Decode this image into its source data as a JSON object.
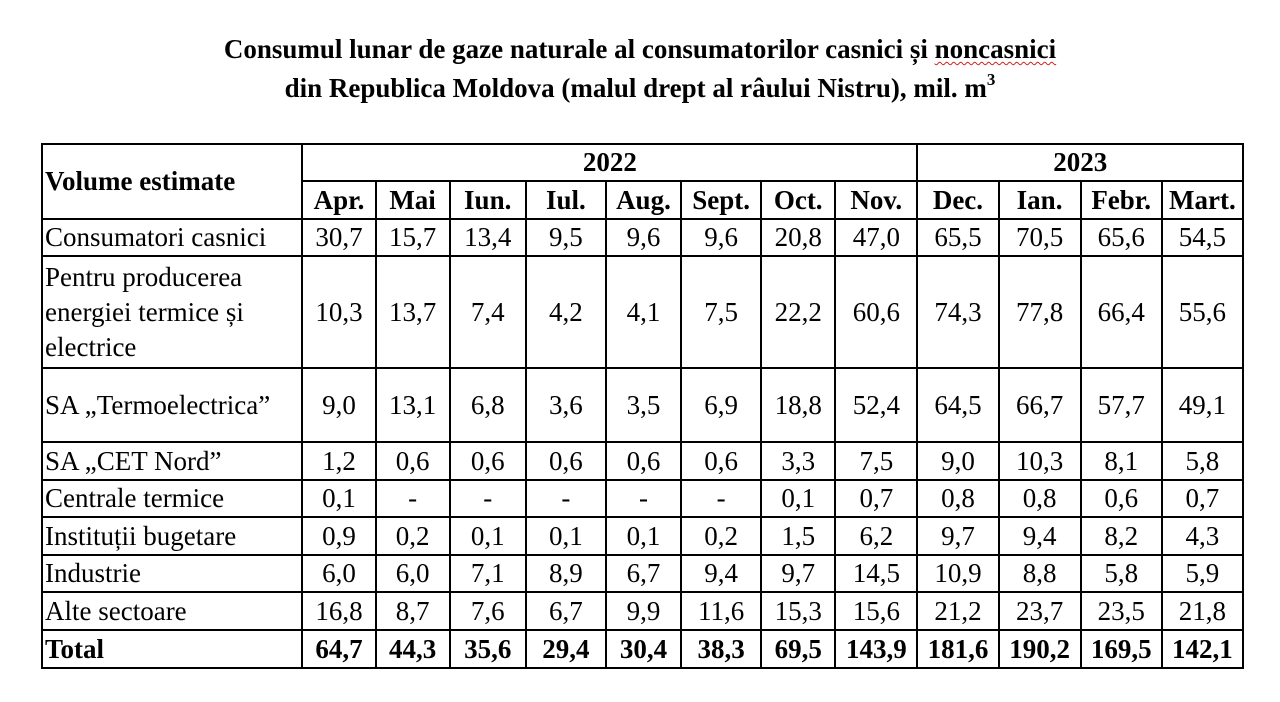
{
  "title": {
    "line1_pre": "Consumul lunar de gaze naturale al consumatorilor casnici și ",
    "line1_flagged": "noncasnici",
    "line2": "din Republica Moldova (malul drept al râului Nistru), mil. m",
    "unit_superscript": "3"
  },
  "table": {
    "header_label": "Volume estimate",
    "years": [
      "2022",
      "2023"
    ],
    "months": [
      "Apr.",
      "Mai",
      "Iun.",
      "Iul.",
      "Aug.",
      "Sept.",
      "Oct.",
      "Nov.",
      "Dec.",
      "Ian.",
      "Febr.",
      "Mart."
    ],
    "rows": [
      {
        "label": "Consumatori casnici",
        "values": [
          "30,7",
          "15,7",
          "13,4",
          "9,5",
          "9,6",
          "9,6",
          "20,8",
          "47,0",
          "65,5",
          "70,5",
          "65,6",
          "54,5"
        ]
      },
      {
        "label": "Pentru producerea energiei termice și electrice",
        "values": [
          "10,3",
          "13,7",
          "7,4",
          "4,2",
          "4,1",
          "7,5",
          "22,2",
          "60,6",
          "74,3",
          "77,8",
          "66,4",
          "55,6"
        ]
      },
      {
        "label": "SA „Termoelectrica”",
        "values": [
          "9,0",
          "13,1",
          "6,8",
          "3,6",
          "3,5",
          "6,9",
          "18,8",
          "52,4",
          "64,5",
          "66,7",
          "57,7",
          "49,1"
        ]
      },
      {
        "label": "SA „CET Nord”",
        "values": [
          "1,2",
          "0,6",
          "0,6",
          "0,6",
          "0,6",
          "0,6",
          "3,3",
          "7,5",
          "9,0",
          "10,3",
          "8,1",
          "5,8"
        ]
      },
      {
        "label": "Centrale termice",
        "values": [
          "0,1",
          "-",
          "-",
          "-",
          "-",
          "-",
          "0,1",
          "0,7",
          "0,8",
          "0,8",
          "0,6",
          "0,7"
        ]
      },
      {
        "label": "Instituții bugetare",
        "values": [
          "0,9",
          "0,2",
          "0,1",
          "0,1",
          "0,1",
          "0,2",
          "1,5",
          "6,2",
          "9,7",
          "9,4",
          "8,2",
          "4,3"
        ]
      },
      {
        "label": "Industrie",
        "values": [
          "6,0",
          "6,0",
          "7,1",
          "8,9",
          "6,7",
          "9,4",
          "9,7",
          "14,5",
          "10,9",
          "8,8",
          "5,8",
          "5,9"
        ]
      },
      {
        "label": "Alte sectoare",
        "values": [
          "16,8",
          "8,7",
          "7,6",
          "6,7",
          "9,9",
          "11,6",
          "15,3",
          "15,6",
          "21,2",
          "23,7",
          "23,5",
          "21,8"
        ]
      }
    ],
    "total": {
      "label": "Total",
      "values": [
        "64,7",
        "44,3",
        "35,6",
        "29,4",
        "30,4",
        "38,3",
        "69,5",
        "143,9",
        "181,6",
        "190,2",
        "169,5",
        "142,1"
      ]
    }
  }
}
